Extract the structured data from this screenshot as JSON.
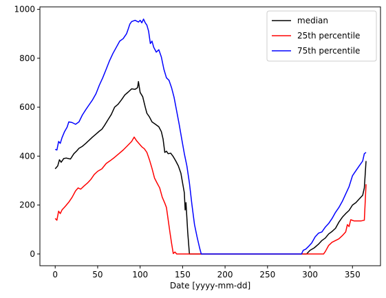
{
  "chart_data": {
    "type": "line",
    "title": "",
    "xlabel": "Date [yyyy-mm-dd]",
    "ylabel": "",
    "xlim": [
      -18,
      383
    ],
    "ylim": [
      -48,
      1010
    ],
    "xticks": [
      0,
      50,
      100,
      150,
      200,
      250,
      300,
      350
    ],
    "yticks": [
      0,
      200,
      400,
      600,
      800,
      1000
    ],
    "grid": false,
    "legend": "top-right",
    "series": [
      {
        "name": "median",
        "color": "#000000",
        "points": [
          [
            0,
            348
          ],
          [
            3,
            360
          ],
          [
            5,
            385
          ],
          [
            7,
            375
          ],
          [
            10,
            390
          ],
          [
            13,
            392
          ],
          [
            18,
            388
          ],
          [
            22,
            410
          ],
          [
            25,
            420
          ],
          [
            28,
            432
          ],
          [
            32,
            440
          ],
          [
            36,
            452
          ],
          [
            40,
            465
          ],
          [
            44,
            478
          ],
          [
            48,
            490
          ],
          [
            52,
            502
          ],
          [
            55,
            510
          ],
          [
            58,
            525
          ],
          [
            62,
            548
          ],
          [
            66,
            570
          ],
          [
            70,
            600
          ],
          [
            74,
            612
          ],
          [
            78,
            630
          ],
          [
            82,
            650
          ],
          [
            86,
            662
          ],
          [
            90,
            675
          ],
          [
            94,
            673
          ],
          [
            97,
            680
          ],
          [
            98,
            705
          ],
          [
            100,
            660
          ],
          [
            103,
            643
          ],
          [
            106,
            600
          ],
          [
            108,
            575
          ],
          [
            111,
            560
          ],
          [
            114,
            540
          ],
          [
            118,
            530
          ],
          [
            122,
            520
          ],
          [
            125,
            500
          ],
          [
            127,
            470
          ],
          [
            129,
            415
          ],
          [
            131,
            420
          ],
          [
            133,
            410
          ],
          [
            136,
            412
          ],
          [
            139,
            398
          ],
          [
            142,
            380
          ],
          [
            145,
            360
          ],
          [
            148,
            330
          ],
          [
            150,
            290
          ],
          [
            152,
            250
          ],
          [
            153,
            180
          ],
          [
            154,
            210
          ],
          [
            156,
            90
          ],
          [
            158,
            0
          ],
          [
            160,
            0
          ],
          [
            165,
            0
          ],
          [
            200,
            0
          ],
          [
            250,
            0
          ],
          [
            296,
            0
          ],
          [
            300,
            15
          ],
          [
            305,
            25
          ],
          [
            310,
            40
          ],
          [
            314,
            55
          ],
          [
            318,
            65
          ],
          [
            322,
            82
          ],
          [
            326,
            92
          ],
          [
            330,
            105
          ],
          [
            334,
            130
          ],
          [
            338,
            150
          ],
          [
            342,
            165
          ],
          [
            346,
            178
          ],
          [
            350,
            200
          ],
          [
            354,
            210
          ],
          [
            358,
            225
          ],
          [
            362,
            240
          ],
          [
            364,
            270
          ],
          [
            366,
            380
          ]
        ]
      },
      {
        "name": "25th percentile",
        "color": "#ff0000",
        "points": [
          [
            0,
            145
          ],
          [
            2,
            138
          ],
          [
            4,
            175
          ],
          [
            6,
            165
          ],
          [
            8,
            180
          ],
          [
            12,
            195
          ],
          [
            16,
            212
          ],
          [
            20,
            232
          ],
          [
            24,
            258
          ],
          [
            27,
            270
          ],
          [
            30,
            265
          ],
          [
            34,
            278
          ],
          [
            38,
            290
          ],
          [
            42,
            305
          ],
          [
            46,
            325
          ],
          [
            50,
            338
          ],
          [
            55,
            348
          ],
          [
            60,
            370
          ],
          [
            65,
            382
          ],
          [
            70,
            395
          ],
          [
            75,
            410
          ],
          [
            80,
            425
          ],
          [
            85,
            442
          ],
          [
            90,
            460
          ],
          [
            93,
            478
          ],
          [
            96,
            462
          ],
          [
            99,
            450
          ],
          [
            102,
            438
          ],
          [
            105,
            430
          ],
          [
            108,
            415
          ],
          [
            111,
            385
          ],
          [
            114,
            350
          ],
          [
            117,
            310
          ],
          [
            120,
            290
          ],
          [
            123,
            270
          ],
          [
            126,
            232
          ],
          [
            129,
            208
          ],
          [
            131,
            190
          ],
          [
            133,
            140
          ],
          [
            135,
            90
          ],
          [
            137,
            45
          ],
          [
            139,
            2
          ],
          [
            141,
            8
          ],
          [
            143,
            0
          ],
          [
            150,
            0
          ],
          [
            200,
            0
          ],
          [
            250,
            0
          ],
          [
            300,
            0
          ],
          [
            316,
            0
          ],
          [
            318,
            10
          ],
          [
            322,
            35
          ],
          [
            326,
            48
          ],
          [
            330,
            55
          ],
          [
            334,
            62
          ],
          [
            338,
            75
          ],
          [
            342,
            90
          ],
          [
            344,
            120
          ],
          [
            346,
            112
          ],
          [
            348,
            140
          ],
          [
            352,
            135
          ],
          [
            356,
            135
          ],
          [
            360,
            135
          ],
          [
            364,
            138
          ],
          [
            366,
            285
          ]
        ]
      },
      {
        "name": "75th percentile",
        "color": "#0000ff",
        "points": [
          [
            0,
            428
          ],
          [
            2,
            425
          ],
          [
            4,
            460
          ],
          [
            6,
            452
          ],
          [
            8,
            475
          ],
          [
            11,
            500
          ],
          [
            14,
            518
          ],
          [
            16,
            540
          ],
          [
            20,
            537
          ],
          [
            24,
            530
          ],
          [
            28,
            540
          ],
          [
            32,
            568
          ],
          [
            36,
            590
          ],
          [
            40,
            610
          ],
          [
            44,
            630
          ],
          [
            48,
            655
          ],
          [
            52,
            690
          ],
          [
            56,
            720
          ],
          [
            60,
            755
          ],
          [
            64,
            790
          ],
          [
            68,
            820
          ],
          [
            72,
            845
          ],
          [
            76,
            870
          ],
          [
            80,
            880
          ],
          [
            84,
            900
          ],
          [
            86,
            920
          ],
          [
            88,
            940
          ],
          [
            90,
            950
          ],
          [
            94,
            955
          ],
          [
            98,
            948
          ],
          [
            100,
            955
          ],
          [
            102,
            945
          ],
          [
            104,
            960
          ],
          [
            106,
            945
          ],
          [
            108,
            935
          ],
          [
            110,
            910
          ],
          [
            112,
            860
          ],
          [
            114,
            870
          ],
          [
            116,
            845
          ],
          [
            119,
            825
          ],
          [
            122,
            835
          ],
          [
            125,
            805
          ],
          [
            128,
            755
          ],
          [
            131,
            720
          ],
          [
            134,
            710
          ],
          [
            137,
            680
          ],
          [
            140,
            640
          ],
          [
            143,
            585
          ],
          [
            146,
            530
          ],
          [
            149,
            470
          ],
          [
            152,
            410
          ],
          [
            155,
            360
          ],
          [
            158,
            290
          ],
          [
            161,
            200
          ],
          [
            164,
            120
          ],
          [
            167,
            70
          ],
          [
            170,
            25
          ],
          [
            172,
            0
          ],
          [
            180,
            0
          ],
          [
            200,
            0
          ],
          [
            250,
            0
          ],
          [
            290,
            0
          ],
          [
            292,
            15
          ],
          [
            295,
            20
          ],
          [
            298,
            30
          ],
          [
            302,
            45
          ],
          [
            306,
            70
          ],
          [
            310,
            85
          ],
          [
            314,
            90
          ],
          [
            318,
            110
          ],
          [
            322,
            125
          ],
          [
            326,
            145
          ],
          [
            330,
            170
          ],
          [
            334,
            190
          ],
          [
            338,
            215
          ],
          [
            342,
            245
          ],
          [
            346,
            275
          ],
          [
            350,
            320
          ],
          [
            354,
            340
          ],
          [
            358,
            360
          ],
          [
            362,
            380
          ],
          [
            364,
            410
          ],
          [
            366,
            415
          ]
        ]
      }
    ]
  }
}
